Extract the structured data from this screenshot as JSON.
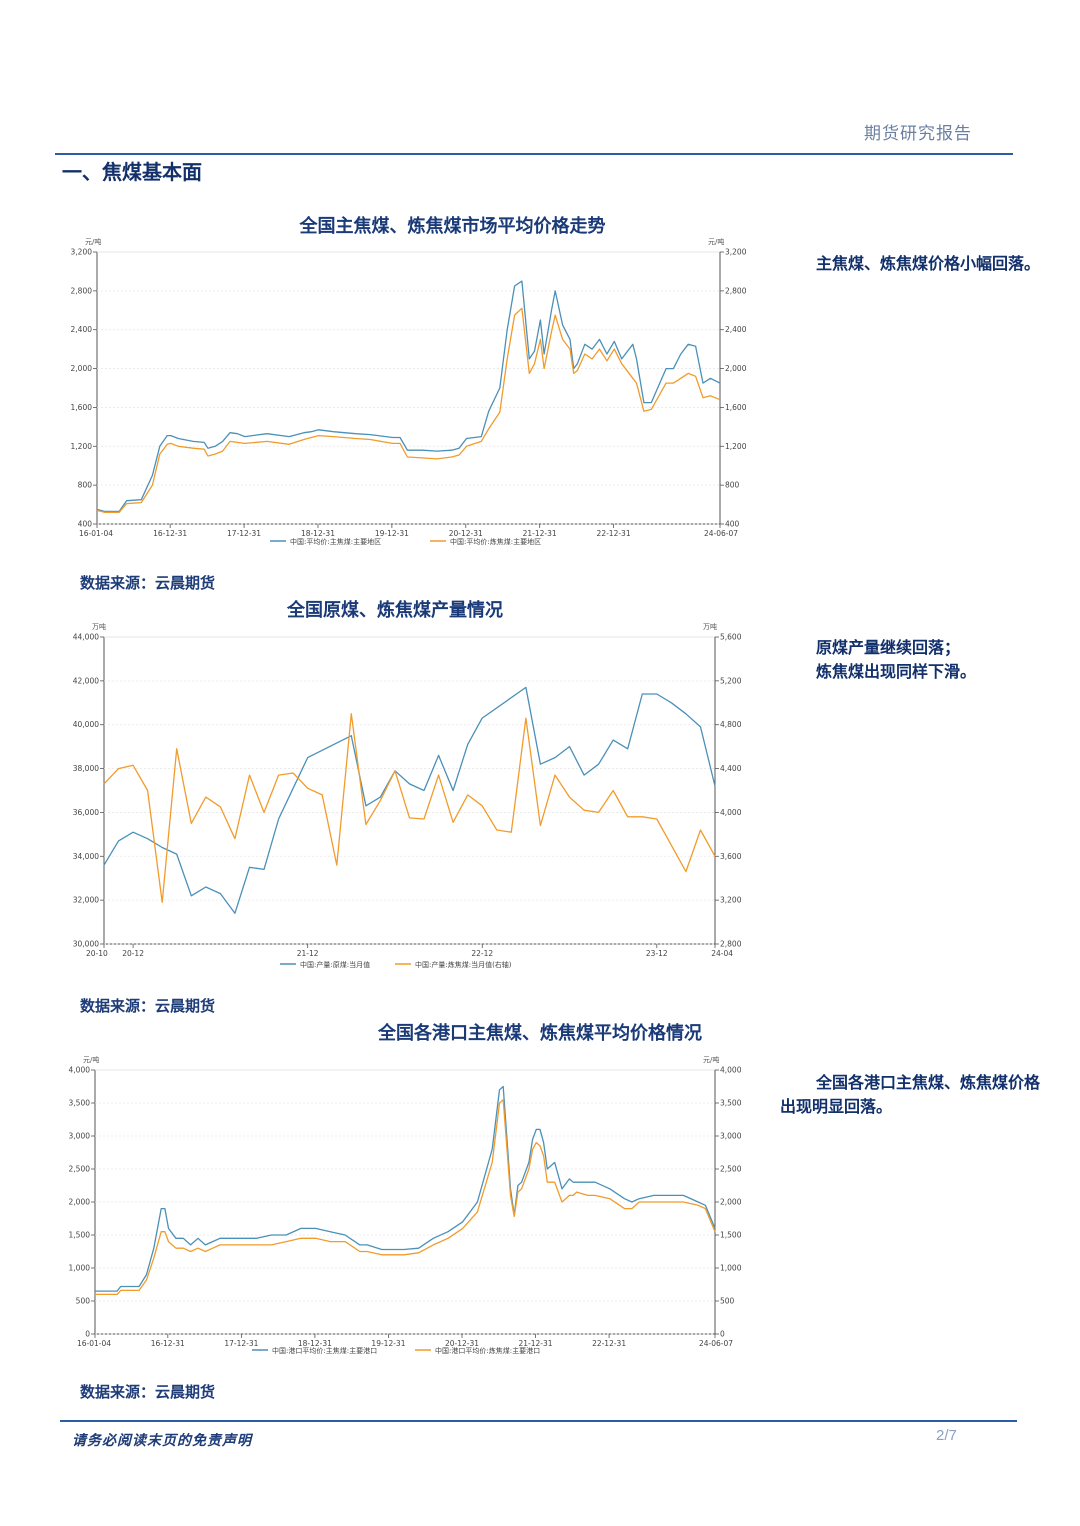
{
  "header": {
    "title": "期货研究报告"
  },
  "section": {
    "title": "一、焦煤基本面"
  },
  "charts": [
    {
      "title": "全国主焦煤、炼焦煤市场平均价格走势",
      "note_text": "主焦煤、炼焦煤价格小幅回落。",
      "source": "数据来源：云晨期货"
    },
    {
      "title": "全国原煤、炼焦煤产量情况",
      "note_line1": "原煤产量继续回落；",
      "note_line2": "炼焦煤出现同样下滑。",
      "source": "数据来源：云晨期货"
    },
    {
      "title": "全国各港口主焦煤、炼焦煤平均价格情况",
      "note_text": "全国各港口主焦煤、炼焦煤价格出现明显回落。",
      "source": "数据来源：云晨期货"
    }
  ],
  "footer": {
    "disclaimer": "请务必阅读末页的免责声明",
    "page": "2/7"
  },
  "chart_data": [
    {
      "type": "line",
      "title": "全国主焦煤、炼焦煤市场平均价格走势",
      "y_unit_left": "元/吨",
      "y_unit_right": "元/吨",
      "ylim": [
        400,
        3200
      ],
      "yticks": [
        400,
        800,
        1200,
        1600,
        2000,
        2400,
        2800,
        3200
      ],
      "ytick_labels": [
        "400",
        "800",
        "1,200",
        "1,600",
        "2,000",
        "2,400",
        "2,800",
        "3,200"
      ],
      "xlim": [
        0,
        8.43
      ],
      "xticks": [
        0,
        0.99,
        1.99,
        2.99,
        3.99,
        4.99,
        5.99,
        6.99,
        8.43
      ],
      "xtick_labels": [
        "16-01-04",
        "16-12-31",
        "17-12-31",
        "18-12-31",
        "19-12-31",
        "20-12-31",
        "21-12-31",
        "22-12-31",
        "24-06-07"
      ],
      "legend_position": "bottom",
      "series": [
        {
          "name": "中国:平均价:主焦煤:主要地区",
          "color": "#4a90b8",
          "x": [
            0,
            0.1,
            0.3,
            0.4,
            0.6,
            0.75,
            0.85,
            0.95,
            1.0,
            1.1,
            1.3,
            1.45,
            1.5,
            1.6,
            1.7,
            1.8,
            1.9,
            2.0,
            2.3,
            2.6,
            2.8,
            2.9,
            3.0,
            3.2,
            3.5,
            3.7,
            4.0,
            4.1,
            4.2,
            4.4,
            4.6,
            4.8,
            4.9,
            5.0,
            5.2,
            5.3,
            5.45,
            5.55,
            5.65,
            5.75,
            5.85,
            5.92,
            6.0,
            6.05,
            6.15,
            6.2,
            6.3,
            6.4,
            6.45,
            6.5,
            6.6,
            6.7,
            6.8,
            6.9,
            7.0,
            7.1,
            7.25,
            7.3,
            7.4,
            7.5,
            7.7,
            7.8,
            7.9,
            8.0,
            8.1,
            8.2,
            8.3,
            8.43
          ],
          "y": [
            550,
            530,
            530,
            640,
            650,
            900,
            1200,
            1310,
            1310,
            1280,
            1250,
            1240,
            1180,
            1200,
            1250,
            1340,
            1330,
            1300,
            1330,
            1300,
            1340,
            1350,
            1370,
            1350,
            1330,
            1320,
            1290,
            1290,
            1160,
            1160,
            1150,
            1160,
            1180,
            1280,
            1300,
            1560,
            1800,
            2400,
            2850,
            2900,
            2100,
            2180,
            2500,
            2150,
            2600,
            2800,
            2450,
            2300,
            2000,
            2050,
            2250,
            2200,
            2300,
            2150,
            2280,
            2100,
            2250,
            2100,
            1650,
            1650,
            2000,
            2000,
            2150,
            2250,
            2230,
            1850,
            1900,
            1850
          ]
        },
        {
          "name": "中国:平均价:炼焦煤:主要地区",
          "color": "#f29b2b",
          "x": [
            0,
            0.1,
            0.3,
            0.4,
            0.6,
            0.75,
            0.85,
            0.95,
            1.0,
            1.1,
            1.3,
            1.45,
            1.5,
            1.6,
            1.7,
            1.8,
            1.9,
            2.0,
            2.3,
            2.6,
            2.8,
            2.9,
            3.0,
            3.2,
            3.5,
            3.7,
            4.0,
            4.1,
            4.2,
            4.4,
            4.6,
            4.8,
            4.9,
            5.0,
            5.2,
            5.3,
            5.45,
            5.55,
            5.65,
            5.75,
            5.85,
            5.92,
            6.0,
            6.05,
            6.15,
            6.2,
            6.3,
            6.4,
            6.45,
            6.5,
            6.6,
            6.7,
            6.8,
            6.9,
            7.0,
            7.1,
            7.25,
            7.3,
            7.4,
            7.5,
            7.7,
            7.8,
            7.9,
            8.0,
            8.1,
            8.2,
            8.3,
            8.43
          ],
          "y": [
            540,
            520,
            520,
            610,
            620,
            800,
            1120,
            1220,
            1230,
            1200,
            1180,
            1170,
            1100,
            1120,
            1150,
            1250,
            1240,
            1230,
            1250,
            1220,
            1270,
            1290,
            1310,
            1300,
            1280,
            1270,
            1230,
            1230,
            1090,
            1080,
            1070,
            1090,
            1110,
            1200,
            1250,
            1380,
            1550,
            2100,
            2550,
            2620,
            1950,
            2050,
            2300,
            2000,
            2380,
            2550,
            2300,
            2200,
            1950,
            1980,
            2150,
            2100,
            2200,
            2080,
            2200,
            2050,
            1900,
            1850,
            1560,
            1580,
            1850,
            1850,
            1900,
            1950,
            1920,
            1700,
            1720,
            1680
          ]
        }
      ]
    },
    {
      "type": "line",
      "title": "全国原煤、炼焦煤产量情况",
      "y_unit_left": "万吨",
      "y_unit_right": "万吨",
      "ylim": [
        30000,
        44000
      ],
      "yticks": [
        30000,
        32000,
        34000,
        36000,
        38000,
        40000,
        42000,
        44000
      ],
      "ytick_labels": [
        "30,000",
        "32,000",
        "34,000",
        "36,000",
        "38,000",
        "40,000",
        "42,000",
        "44,000"
      ],
      "ylim_right": [
        2800,
        5600
      ],
      "yticks_right": [
        2800,
        3200,
        3600,
        4000,
        4400,
        4800,
        5200,
        5600
      ],
      "ytick_labels_right": [
        "2,800",
        "3,200",
        "3,600",
        "4,000",
        "4,400",
        "4,800",
        "5,200",
        "5,600"
      ],
      "xlim": [
        0,
        42
      ],
      "xticks": [
        0,
        2,
        14,
        26,
        38,
        42
      ],
      "xtick_labels": [
        "20-10",
        "20-12",
        "21-12",
        "22-12",
        "23-12",
        "24-04"
      ],
      "legend_position": "bottom",
      "series": [
        {
          "name": "中国:产量:原煤:当月值",
          "color": "#4a90b8",
          "axis": "left",
          "x": [
            0,
            1,
            2,
            3,
            4,
            5,
            6,
            7,
            8,
            9,
            10,
            11,
            12,
            13,
            14,
            17,
            18,
            19,
            20,
            21,
            22,
            23,
            24,
            25,
            26,
            29,
            30,
            31,
            32,
            33,
            34,
            35,
            36,
            37,
            38,
            39,
            40,
            41,
            42
          ],
          "y": [
            33600,
            34700,
            35100,
            34800,
            34400,
            34100,
            32200,
            32600,
            32300,
            31400,
            33500,
            33400,
            35700,
            37100,
            38500,
            39500,
            36300,
            36700,
            37900,
            37300,
            37000,
            38600,
            37000,
            39100,
            40300,
            41700,
            38200,
            38500,
            39000,
            37700,
            38200,
            39300,
            38900,
            41400,
            41400,
            41000,
            40500,
            39900,
            37200
          ]
        },
        {
          "name": "中国:产量:炼焦煤:当月值(右轴)",
          "color": "#f29b2b",
          "axis": "right",
          "x": [
            0,
            1,
            2,
            3,
            4,
            5,
            6,
            7,
            8,
            9,
            10,
            11,
            12,
            13,
            14,
            15,
            16,
            17,
            18,
            19,
            20,
            21,
            22,
            23,
            24,
            25,
            26,
            27,
            28,
            29,
            30,
            31,
            32,
            33,
            34,
            35,
            36,
            37,
            38,
            39,
            40,
            41,
            42
          ],
          "y": [
            4260,
            4400,
            4430,
            4200,
            3180,
            4580,
            3900,
            4140,
            4050,
            3760,
            4340,
            4000,
            4340,
            4360,
            4220,
            4160,
            3520,
            4900,
            3890,
            4110,
            4380,
            3950,
            3940,
            4340,
            3910,
            4160,
            4060,
            3840,
            3820,
            4860,
            3880,
            4340,
            4140,
            4020,
            4000,
            4200,
            3960,
            3960,
            3940,
            3700,
            3460,
            3840,
            3600
          ]
        }
      ]
    },
    {
      "type": "line",
      "title": "全国各港口主焦煤、炼焦煤平均价格情况",
      "y_unit_left": "元/吨",
      "y_unit_right": "元/吨",
      "ylim": [
        0,
        4000
      ],
      "yticks": [
        0,
        500,
        1000,
        1500,
        2000,
        2500,
        3000,
        3500,
        4000
      ],
      "ytick_labels": [
        "0",
        "500",
        "1,000",
        "1,500",
        "2,000",
        "2,500",
        "3,000",
        "3,500",
        "4,000"
      ],
      "xlim": [
        0,
        8.43
      ],
      "xticks": [
        0,
        0.99,
        1.99,
        2.99,
        3.99,
        4.99,
        5.99,
        6.99,
        8.43
      ],
      "xtick_labels": [
        "16-01-04",
        "16-12-31",
        "17-12-31",
        "18-12-31",
        "19-12-31",
        "20-12-31",
        "21-12-31",
        "22-12-31",
        "24-06-07"
      ],
      "legend_position": "bottom",
      "series": [
        {
          "name": "中国:港口平均价:主焦煤:主要港口",
          "color": "#4a90b8",
          "x": [
            0,
            0.3,
            0.35,
            0.6,
            0.7,
            0.8,
            0.9,
            0.95,
            1.0,
            1.1,
            1.2,
            1.3,
            1.4,
            1.5,
            1.6,
            1.7,
            1.8,
            2.0,
            2.2,
            2.4,
            2.6,
            2.8,
            3.0,
            3.2,
            3.4,
            3.6,
            3.7,
            3.9,
            4.0,
            4.2,
            4.4,
            4.6,
            4.8,
            5.0,
            5.2,
            5.4,
            5.5,
            5.55,
            5.65,
            5.7,
            5.75,
            5.8,
            5.9,
            5.95,
            6.0,
            6.05,
            6.1,
            6.15,
            6.25,
            6.35,
            6.45,
            6.5,
            6.55,
            6.7,
            6.8,
            7.0,
            7.2,
            7.3,
            7.4,
            7.6,
            7.8,
            8.0,
            8.2,
            8.3,
            8.43
          ],
          "y": [
            650,
            650,
            720,
            720,
            900,
            1300,
            1900,
            1900,
            1600,
            1450,
            1450,
            1350,
            1450,
            1350,
            1400,
            1450,
            1450,
            1450,
            1450,
            1500,
            1500,
            1600,
            1600,
            1550,
            1500,
            1350,
            1350,
            1280,
            1280,
            1280,
            1300,
            1450,
            1550,
            1700,
            2000,
            2800,
            3700,
            3750,
            2200,
            1800,
            2250,
            2300,
            2600,
            2950,
            3100,
            3100,
            2900,
            2500,
            2600,
            2200,
            2350,
            2300,
            2300,
            2300,
            2300,
            2200,
            2050,
            2000,
            2050,
            2100,
            2100,
            2100,
            2000,
            1950,
            1600
          ]
        },
        {
          "name": "中国:港口平均价:炼焦煤:主要港口",
          "color": "#f29b2b",
          "x": [
            0,
            0.3,
            0.35,
            0.6,
            0.7,
            0.8,
            0.9,
            0.95,
            1.0,
            1.1,
            1.2,
            1.3,
            1.4,
            1.5,
            1.6,
            1.7,
            1.8,
            2.0,
            2.2,
            2.4,
            2.6,
            2.8,
            3.0,
            3.2,
            3.4,
            3.6,
            3.7,
            3.9,
            4.0,
            4.2,
            4.4,
            4.6,
            4.8,
            5.0,
            5.2,
            5.4,
            5.5,
            5.55,
            5.65,
            5.7,
            5.75,
            5.8,
            5.9,
            5.95,
            6.0,
            6.05,
            6.1,
            6.15,
            6.25,
            6.35,
            6.45,
            6.5,
            6.55,
            6.7,
            6.8,
            7.0,
            7.2,
            7.3,
            7.4,
            7.6,
            7.8,
            8.0,
            8.2,
            8.3,
            8.43
          ],
          "y": [
            600,
            600,
            660,
            660,
            820,
            1150,
            1550,
            1550,
            1400,
            1300,
            1300,
            1250,
            1300,
            1250,
            1300,
            1350,
            1350,
            1350,
            1350,
            1350,
            1400,
            1450,
            1450,
            1400,
            1400,
            1250,
            1250,
            1200,
            1200,
            1200,
            1230,
            1350,
            1450,
            1600,
            1850,
            2600,
            3500,
            3550,
            2100,
            1780,
            2150,
            2200,
            2500,
            2800,
            2900,
            2850,
            2700,
            2300,
            2300,
            2000,
            2100,
            2100,
            2150,
            2100,
            2100,
            2050,
            1900,
            1900,
            2000,
            2000,
            2000,
            2000,
            1950,
            1900,
            1550
          ]
        }
      ]
    }
  ]
}
